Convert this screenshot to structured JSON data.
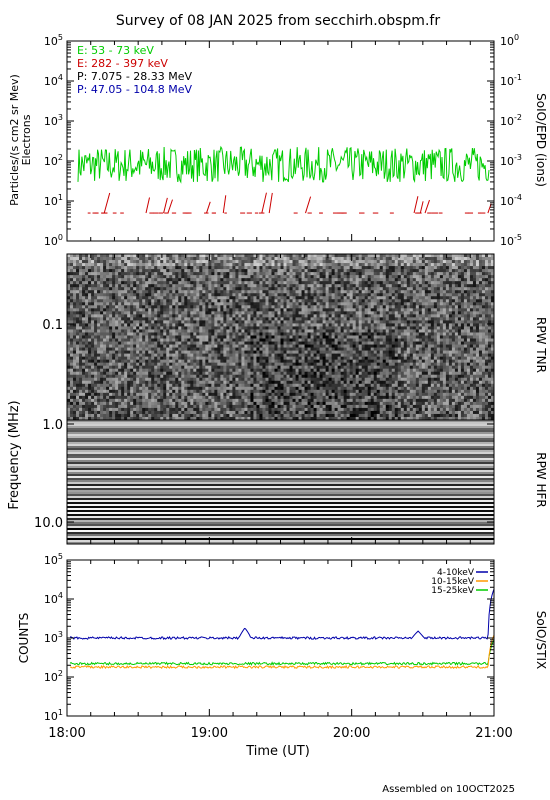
{
  "title": "Survey of 08 JAN 2025 from secchirh.obspm.fr",
  "footer": "Assembled on 10OCT2025",
  "x_axis": {
    "label": "Time (UT)",
    "ticks": [
      "18:00",
      "19:00",
      "20:00",
      "21:00"
    ]
  },
  "chart_data": [
    {
      "type": "line",
      "panel": "SolO/EPD",
      "ylabel": "Particles/(s cm2 sr Mev)",
      "ylabel2": "Electrons",
      "right_label": "SoIO/EPD (ions)",
      "y_scale": "log",
      "ylim": [
        1,
        100000
      ],
      "y_ticks": [
        "10^0",
        "10^1",
        "10^2",
        "10^3",
        "10^4",
        "10^5"
      ],
      "y2_ticks": [
        "10^-5",
        "10^-4",
        "10^-3",
        "10^-2",
        "10^-1",
        "10^0"
      ],
      "xlim": [
        "18:00",
        "21:00"
      ],
      "legend": [
        {
          "label": "E: 53 - 73 keV",
          "color": "#00cc00"
        },
        {
          "label": "E: 282 - 397 keV",
          "color": "#cc0000"
        },
        {
          "label": "P: 7.075 - 28.33 MeV",
          "color": "#000000"
        },
        {
          "label": "P: 47.05 - 104.8 MeV",
          "color": "#0000aa"
        }
      ],
      "series": [
        {
          "name": "E: 53 - 73 keV",
          "color": "#00cc00",
          "typical": 80,
          "range": [
            30,
            250
          ]
        },
        {
          "name": "E: 282 - 397 keV",
          "color": "#cc0000",
          "typical": 5,
          "range": [
            4,
            15
          ]
        }
      ]
    },
    {
      "type": "heatmap",
      "panel": "RPW TNR / RPW HFR",
      "ylabel": "Frequency (MHz)",
      "y_scale": "log",
      "y_ticks": [
        "0.1",
        "1.0",
        "10.0"
      ],
      "right_labels": [
        "RPW TNR",
        "RPW HFR"
      ],
      "colors": {
        "low": "#000000",
        "high": "#ffffff"
      }
    },
    {
      "type": "line",
      "panel": "SolO/STIX",
      "ylabel": "COUNTS",
      "right_label": "SolO/STIX",
      "y_scale": "log",
      "ylim": [
        10,
        100000
      ],
      "y_ticks": [
        "10^1",
        "10^2",
        "10^3",
        "10^4",
        "10^5"
      ],
      "legend": [
        {
          "label": "4-10keV",
          "color": "#0000aa"
        },
        {
          "label": "10-15keV",
          "color": "#ff9900"
        },
        {
          "label": "15-25keV",
          "color": "#00cc00"
        }
      ],
      "series": [
        {
          "name": "4-10keV",
          "color": "#0000aa",
          "typical": 1000,
          "peaks": [
            {
              "t": "19:15",
              "v": 1800
            },
            {
              "t": "20:28",
              "v": 1500
            },
            {
              "t": "21:00",
              "v": 18000
            }
          ]
        },
        {
          "name": "10-15keV",
          "color": "#ff9900",
          "typical": 180,
          "peaks": [
            {
              "t": "21:00",
              "v": 1200
            }
          ]
        },
        {
          "name": "15-25keV",
          "color": "#00cc00",
          "typical": 220,
          "peaks": [
            {
              "t": "21:00",
              "v": 900
            }
          ]
        }
      ]
    }
  ]
}
